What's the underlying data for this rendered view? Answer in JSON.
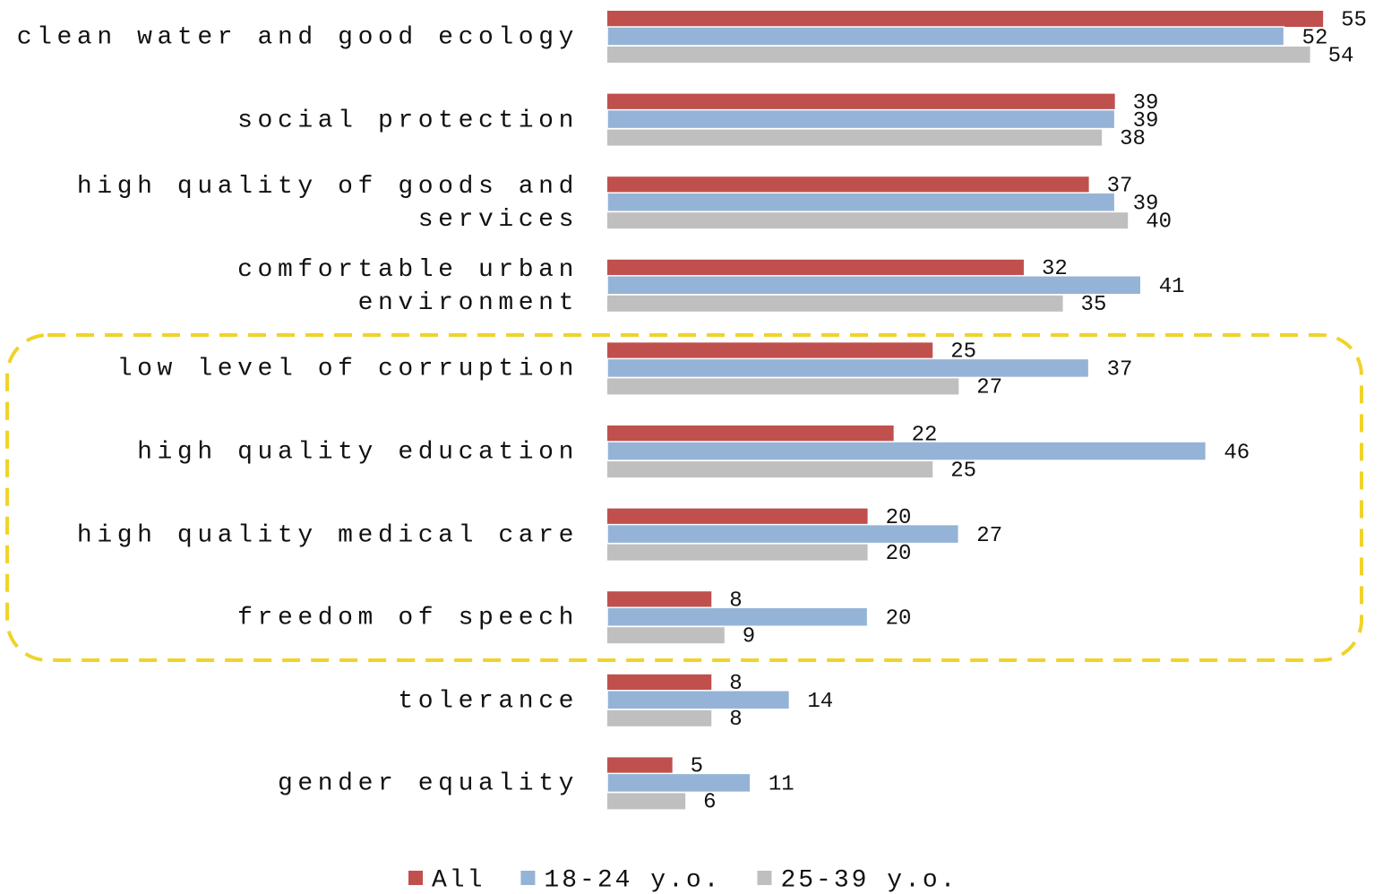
{
  "chart_data": {
    "type": "bar",
    "orientation": "horizontal",
    "categories": [
      "clean water and good ecology",
      "social protection",
      "high quality of goods and services",
      "comfortable urban environment",
      "low level of corruption",
      "high quality education",
      "high quality medical care",
      "freedom of speech",
      "tolerance",
      "gender equality"
    ],
    "series": [
      {
        "name": "All",
        "color": "#c0504d",
        "values": [
          55,
          39,
          37,
          32,
          25,
          22,
          20,
          8,
          8,
          5
        ]
      },
      {
        "name": "18-24 y.o.",
        "color": "#95b3d7",
        "values": [
          52,
          39,
          39,
          41,
          37,
          46,
          27,
          20,
          14,
          11
        ]
      },
      {
        "name": "25-39 y.o.",
        "color": "#bfbfbf",
        "values": [
          54,
          38,
          40,
          35,
          27,
          25,
          20,
          9,
          8,
          6
        ]
      }
    ],
    "legend": "bottom"
  }
}
